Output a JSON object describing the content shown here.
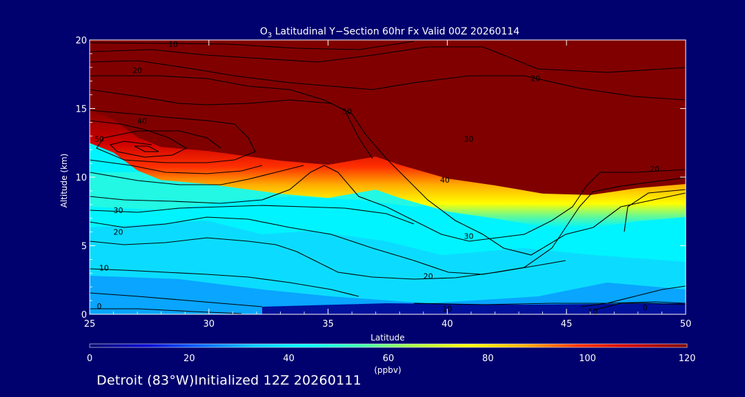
{
  "chart_data": {
    "type": "heatmap",
    "title": "O",
    "title_subscript": "3",
    "title_rest": " Latitudinal Y−Section 60hr  Fx Valid 00Z 20260114",
    "xlabel": "Latitude",
    "ylabel": "Altitude (km)",
    "xlim": [
      25,
      50
    ],
    "ylim": [
      0,
      20
    ],
    "x_ticks": [
      "25",
      "30",
      "35",
      "40",
      "45",
      "50"
    ],
    "y_ticks": [
      "0",
      "5",
      "10",
      "15",
      "20"
    ],
    "colorbar": {
      "range": [
        0,
        120
      ],
      "ticks": [
        "0",
        "20",
        "40",
        "60",
        "80",
        "100",
        "120"
      ],
      "unit": "(ppbv)",
      "colors": [
        "#00006e",
        "#0000d0",
        "#0060ff",
        "#00c8ff",
        "#00ffff",
        "#40ffb0",
        "#b0ff40",
        "#ffff00",
        "#ffb000",
        "#ff3000",
        "#cc0000",
        "#800000"
      ]
    },
    "fill_description": "ozone mixing ratio",
    "tropopause_km": [
      {
        "x": 25,
        "y": 14.9
      },
      {
        "x": 26,
        "y": 14.2
      },
      {
        "x": 27,
        "y": 12.9
      },
      {
        "x": 28,
        "y": 12.2
      },
      {
        "x": 30,
        "y": 11.9
      },
      {
        "x": 33,
        "y": 11.2
      },
      {
        "x": 35,
        "y": 10.9
      },
      {
        "x": 37,
        "y": 11.5
      },
      {
        "x": 38,
        "y": 10.9
      },
      {
        "x": 40,
        "y": 9.9
      },
      {
        "x": 42,
        "y": 9.4
      },
      {
        "x": 44,
        "y": 8.8
      },
      {
        "x": 46,
        "y": 8.7
      },
      {
        "x": 48,
        "y": 9.2
      },
      {
        "x": 50,
        "y": 9.5
      }
    ],
    "contour_labels": [
      {
        "text": "10",
        "x": 28.5,
        "y": 19.7
      },
      {
        "text": "20",
        "x": 27.0,
        "y": 17.8
      },
      {
        "text": "20",
        "x": 43.7,
        "y": 17.2
      },
      {
        "text": "50",
        "x": 35.8,
        "y": 14.8
      },
      {
        "text": "40",
        "x": 27.2,
        "y": 14.1
      },
      {
        "text": "50",
        "x": 25.4,
        "y": 12.8
      },
      {
        "text": "30",
        "x": 40.9,
        "y": 12.8
      },
      {
        "text": "20",
        "x": 48.7,
        "y": 10.6
      },
      {
        "text": "40",
        "x": 39.9,
        "y": 9.8
      },
      {
        "text": "30",
        "x": 26.2,
        "y": 7.6
      },
      {
        "text": "20",
        "x": 26.2,
        "y": 6.0
      },
      {
        "text": "30",
        "x": 40.9,
        "y": 5.7
      },
      {
        "text": "10",
        "x": 25.6,
        "y": 3.4
      },
      {
        "text": "20",
        "x": 39.2,
        "y": 2.8
      },
      {
        "text": "0",
        "x": 25.4,
        "y": 0.6
      },
      {
        "text": "10",
        "x": 40.0,
        "y": 0.4
      },
      {
        "text": "10",
        "x": 46.1,
        "y": 0.2
      },
      {
        "text": "0",
        "x": 48.3,
        "y": 0.5
      }
    ]
  },
  "footer": {
    "text": "Detroit (83°W)Initialized 12Z 20260111"
  },
  "colors": {
    "background": "#00006e",
    "text": "#ffffff",
    "contour": "#000000"
  }
}
